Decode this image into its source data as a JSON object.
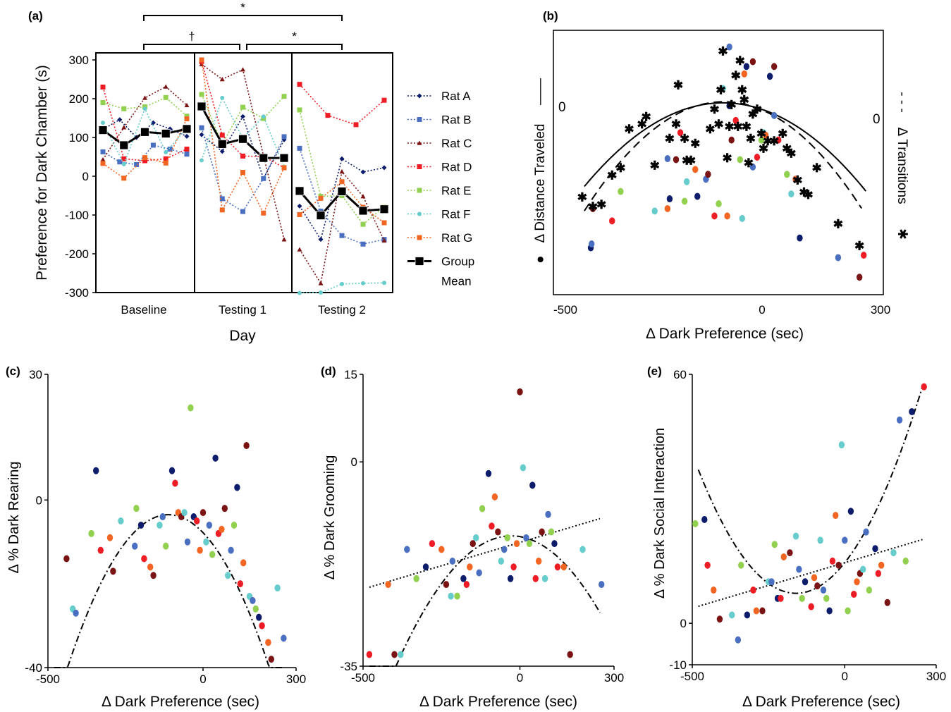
{
  "colors": {
    "rat_a": "#0d1c6b",
    "rat_b": "#4a6fc0",
    "rat_c": "#7a1414",
    "rat_d": "#ee1c24",
    "rat_e": "#92d050",
    "rat_f": "#66cccc",
    "rat_g": "#f26522",
    "group_mean": "#000000"
  },
  "chart_data": [
    {
      "panel": "(a)",
      "type": "line",
      "ylabel": "Preference for Dark Chamber (s)",
      "xlabel": "Day",
      "ylim": [
        -300,
        300
      ],
      "yticks": [
        "300",
        "200",
        "100",
        "0",
        "-100",
        "-200",
        "-300"
      ],
      "groups": [
        "Baseline",
        "Testing 1",
        "Testing 2"
      ],
      "significance": [
        {
          "from": "Baseline",
          "to": "Testing 2",
          "mark": "*"
        },
        {
          "from": "Baseline",
          "to": "Testing 1",
          "mark": "†"
        },
        {
          "from": "Testing 1",
          "to": "Testing 2",
          "mark": "*"
        }
      ],
      "series": [
        {
          "name": "Rat A",
          "color": "rat_a",
          "marker": "diamond",
          "values": [
            [
              121,
              146,
              100,
              138,
              122,
              103
            ],
            [
              107,
              64,
              154,
              -6,
              94
            ],
            [
              -77,
              -163,
              45,
              11,
              22
            ]
          ]
        },
        {
          "name": "Rat B",
          "color": "rat_b",
          "marker": "square",
          "values": [
            [
              63,
              37,
              30,
              80,
              70,
              57
            ],
            [
              125,
              -58,
              -91,
              -6,
              102
            ],
            [
              72,
              -90,
              -153,
              -175,
              -163
            ]
          ]
        },
        {
          "name": "Rat C",
          "color": "rat_c",
          "marker": "triangle",
          "values": [
            [
              43,
              126,
              202,
              231,
              183
            ],
            [
              289,
              250,
              275,
              53,
              -163
            ],
            [
              -189,
              -276,
              12,
              -52,
              -166
            ]
          ]
        },
        {
          "name": "Rat D",
          "color": "rat_d",
          "marker": "square",
          "values": [
            [
              230,
              45,
              40,
              45,
              70
            ],
            [
              296,
              106,
              52,
              51,
              22
            ],
            [
              237,
              157,
              133,
              196
            ]
          ]
        },
        {
          "name": "Rat E",
          "color": "rat_e",
          "marker": "square",
          "values": [
            [
              190,
              174,
              179,
              203,
              155
            ],
            [
              211,
              83,
              178,
              149,
              206
            ],
            [
              171,
              -52,
              -50,
              -124,
              -79
            ]
          ]
        },
        {
          "name": "Rat F",
          "color": "rat_f",
          "marker": "circle",
          "values": [
            [
              138,
              31,
              174,
              62,
              124
            ],
            [
              41,
              202,
              97,
              154,
              24
            ],
            [
              -301,
              -300,
              -278,
              -276,
              -275
            ]
          ]
        },
        {
          "name": "Rat G",
          "color": "rat_g",
          "marker": "square",
          "values": [
            [
              33,
              -5,
              48,
              34,
              148
            ],
            [
              300,
              -87,
              10,
              -95,
              22
            ],
            [
              -99,
              -57,
              -14,
              -80,
              -120
            ]
          ]
        },
        {
          "name": "Group Mean",
          "color": "group_mean",
          "marker": "square",
          "values": [
            [
              119,
              80,
              114,
              110,
              122
            ],
            [
              180,
              83,
              96,
              47,
              47
            ],
            [
              -38,
              -101,
              -39,
              -89,
              -85
            ]
          ]
        }
      ]
    },
    {
      "panel": "(b)",
      "type": "scatter",
      "xlabel": "Δ Dark Preference (sec)",
      "ylabel_left": "Δ Distance Traveled",
      "ylabel_right": "Δ Transitions",
      "left_series_marker": "●",
      "right_series_marker": "✱",
      "left_line_marker": "——",
      "right_line_marker": "- - -",
      "xlim": [
        -500,
        300
      ],
      "xticks": [
        "-500",
        "0",
        "300"
      ],
      "ylim_left": [
        -500,
        200
      ],
      "ylim_right": [
        -500,
        200
      ],
      "yzero_label_left": "0",
      "yzero_label_right": "0",
      "fit_left": {
        "style": "solid",
        "a": -0.00161,
        "b": -0.288,
        "c": -7
      },
      "fit_right": {
        "style": "dashed",
        "a": -0.0021,
        "b": -0.37,
        "c": 18
      },
      "points_distance": [
        [
          -400,
          -290
        ],
        [
          -398,
          -282
        ],
        [
          -395,
          -210
        ],
        [
          -350,
          -235
        ],
        [
          -330,
          -175
        ],
        [
          -250,
          -215
        ],
        [
          -220,
          -210
        ],
        [
          -215,
          -190
        ],
        [
          -220,
          -108
        ],
        [
          -200,
          -110
        ],
        [
          -190,
          -55
        ],
        [
          -180,
          -195
        ],
        [
          -175,
          -155
        ],
        [
          -155,
          -130
        ],
        [
          -150,
          -185
        ],
        [
          -130,
          -150
        ],
        [
          -125,
          -140
        ],
        [
          -110,
          -225
        ],
        [
          -100,
          -200
        ],
        [
          -90,
          35
        ],
        [
          -80,
          -225
        ],
        [
          -75,
          0
        ],
        [
          -75,
          120
        ],
        [
          -70,
          -70
        ],
        [
          -60,
          -30
        ],
        [
          -50,
          -110
        ],
        [
          -45,
          -230
        ],
        [
          -40,
          65
        ],
        [
          -35,
          80
        ],
        [
          -20,
          -125
        ],
        [
          -20,
          90
        ],
        [
          -10,
          -105
        ],
        [
          0,
          -70
        ],
        [
          5,
          -55
        ],
        [
          10,
          -60
        ],
        [
          20,
          60
        ],
        [
          30,
          -20
        ],
        [
          30,
          80
        ],
        [
          40,
          -70
        ],
        [
          60,
          -140
        ],
        [
          70,
          -180
        ],
        [
          80,
          -150
        ],
        [
          90,
          -270
        ],
        [
          180,
          -310
        ],
        [
          230,
          -350
        ],
        [
          240,
          -305
        ]
      ],
      "points_transitions": [
        [
          -420,
          -160
        ],
        [
          -395,
          -180
        ],
        [
          -375,
          -175
        ],
        [
          -350,
          -115
        ],
        [
          -330,
          -100
        ],
        [
          -310,
          -20
        ],
        [
          -280,
          -10
        ],
        [
          -270,
          5
        ],
        [
          -250,
          -95
        ],
        [
          -215,
          -40
        ],
        [
          -200,
          -10
        ],
        [
          -195,
          70
        ],
        [
          -180,
          -40
        ],
        [
          -175,
          -85
        ],
        [
          -165,
          -85
        ],
        [
          -155,
          -50
        ],
        [
          -120,
          -20
        ],
        [
          -110,
          20
        ],
        [
          -100,
          -10
        ],
        [
          -95,
          60
        ],
        [
          -90,
          140
        ],
        [
          -80,
          -80
        ],
        [
          -75,
          -15
        ],
        [
          -70,
          30
        ],
        [
          -60,
          90
        ],
        [
          -55,
          -15
        ],
        [
          -50,
          120
        ],
        [
          -45,
          60
        ],
        [
          -40,
          40
        ],
        [
          -35,
          -15
        ],
        [
          -30,
          -90
        ],
        [
          -25,
          -40
        ],
        [
          -20,
          10
        ],
        [
          -10,
          20
        ],
        [
          0,
          -30
        ],
        [
          5,
          -60
        ],
        [
          15,
          -45
        ],
        [
          30,
          -45
        ],
        [
          50,
          -30
        ],
        [
          60,
          -60
        ],
        [
          70,
          -70
        ],
        [
          85,
          -125
        ],
        [
          100,
          -150
        ],
        [
          110,
          -155
        ],
        [
          130,
          -100
        ],
        [
          180,
          -215
        ],
        [
          230,
          -260
        ]
      ]
    },
    {
      "panel": "(c)",
      "type": "scatter",
      "xlabel": "Δ Dark Preference (sec)",
      "ylabel": "Δ % Dark Rearing",
      "xlim": [
        -500,
        300
      ],
      "ylim": [
        -40,
        30
      ],
      "xticks": [
        "-500",
        "0",
        "300"
      ],
      "yticks": [
        "30",
        "0",
        "-40"
      ],
      "fit": {
        "style": "dashdot",
        "a": -0.000345,
        "b": -0.077,
        "c": -7.8
      },
      "points": [
        [
          -440,
          -14
        ],
        [
          -420,
          -26
        ],
        [
          -410,
          -27
        ],
        [
          -360,
          -8
        ],
        [
          -345,
          7
        ],
        [
          -330,
          -12
        ],
        [
          -300,
          -9
        ],
        [
          -290,
          -17
        ],
        [
          -265,
          -5
        ],
        [
          -220,
          -11
        ],
        [
          -215,
          -2
        ],
        [
          -200,
          -6
        ],
        [
          -190,
          -14
        ],
        [
          -170,
          -16
        ],
        [
          -160,
          -18
        ],
        [
          -140,
          -6
        ],
        [
          -130,
          -4
        ],
        [
          -120,
          -11
        ],
        [
          -100,
          7
        ],
        [
          -90,
          4
        ],
        [
          -80,
          -3
        ],
        [
          -70,
          -4
        ],
        [
          -60,
          -3
        ],
        [
          -50,
          -10
        ],
        [
          -40,
          22
        ],
        [
          -30,
          -4
        ],
        [
          -20,
          -5
        ],
        [
          -10,
          -12
        ],
        [
          0,
          -3
        ],
        [
          10,
          -10
        ],
        [
          20,
          -6
        ],
        [
          30,
          -13
        ],
        [
          40,
          10
        ],
        [
          50,
          -8
        ],
        [
          60,
          -7
        ],
        [
          70,
          -2
        ],
        [
          80,
          -18
        ],
        [
          90,
          -12
        ],
        [
          100,
          -6
        ],
        [
          110,
          3
        ],
        [
          120,
          -20
        ],
        [
          130,
          -15
        ],
        [
          140,
          13
        ],
        [
          150,
          -23
        ],
        [
          160,
          -24
        ],
        [
          170,
          -26
        ],
        [
          180,
          -28
        ],
        [
          190,
          -30
        ],
        [
          210,
          -34
        ],
        [
          220,
          -38
        ],
        [
          240,
          -21
        ],
        [
          260,
          -33
        ]
      ]
    },
    {
      "panel": "(d)",
      "type": "scatter",
      "xlabel": "Δ Dark Preference (sec)",
      "ylabel": "Δ % Dark Grooming",
      "xlim": [
        -500,
        300
      ],
      "ylim": [
        -35,
        15
      ],
      "xticks": [
        "-500",
        "0",
        "300"
      ],
      "yticks": [
        "15",
        "0",
        "-35"
      ],
      "fit_quadratic": {
        "style": "dashdot",
        "a": -0.000165,
        "b": -0.009,
        "c": -12.8
      },
      "fit_linear": {
        "style": "dotted",
        "m": 0.016,
        "c": -13.8
      },
      "points": [
        [
          -480,
          -33
        ],
        [
          -420,
          -21
        ],
        [
          -400,
          -33
        ],
        [
          -380,
          -33
        ],
        [
          -360,
          -15
        ],
        [
          -330,
          -20
        ],
        [
          -300,
          -18
        ],
        [
          -280,
          -14
        ],
        [
          -250,
          -15
        ],
        [
          -235,
          -21
        ],
        [
          -220,
          -23
        ],
        [
          -215,
          -17
        ],
        [
          -200,
          -23
        ],
        [
          -180,
          -20
        ],
        [
          -170,
          -21
        ],
        [
          -160,
          -18
        ],
        [
          -150,
          -14
        ],
        [
          -140,
          -13
        ],
        [
          -130,
          -19
        ],
        [
          -120,
          -8
        ],
        [
          -100,
          -2
        ],
        [
          -90,
          -11
        ],
        [
          -80,
          -6
        ],
        [
          -70,
          -12
        ],
        [
          -60,
          -17
        ],
        [
          -50,
          -15
        ],
        [
          -40,
          -13
        ],
        [
          -30,
          -20
        ],
        [
          -20,
          -18
        ],
        [
          -10,
          -14
        ],
        [
          0,
          12
        ],
        [
          10,
          -1
        ],
        [
          20,
          -13
        ],
        [
          30,
          -14
        ],
        [
          40,
          -4
        ],
        [
          50,
          -20
        ],
        [
          60,
          -17
        ],
        [
          70,
          -12
        ],
        [
          80,
          -20
        ],
        [
          90,
          -9
        ],
        [
          100,
          -12
        ],
        [
          110,
          -14
        ],
        [
          120,
          -18
        ],
        [
          140,
          -18
        ],
        [
          160,
          -33
        ],
        [
          200,
          -15
        ],
        [
          260,
          -21
        ]
      ]
    },
    {
      "panel": "(e)",
      "type": "scatter",
      "xlabel": "Δ Dark Preference (sec)",
      "ylabel": "Δ % Dark Social Interaction",
      "xlim": [
        -500,
        300
      ],
      "ylim": [
        -10,
        60
      ],
      "xticks": [
        "-500",
        "0",
        "300"
      ],
      "yticks": [
        "60",
        "0",
        "-10"
      ],
      "fit_quadratic": {
        "style": "dashdot",
        "a": 0.00029,
        "b": 0.0925,
        "c": 14.6
      },
      "fit_linear": {
        "style": "dotted",
        "m": 0.0219,
        "c": 14.6
      },
      "points": [
        [
          -490,
          24
        ],
        [
          -460,
          25
        ],
        [
          -450,
          14
        ],
        [
          -430,
          8
        ],
        [
          -410,
          1
        ],
        [
          -370,
          2
        ],
        [
          -350,
          -4
        ],
        [
          -340,
          14
        ],
        [
          -320,
          2
        ],
        [
          -300,
          8
        ],
        [
          -290,
          3
        ],
        [
          -270,
          3
        ],
        [
          -250,
          10
        ],
        [
          -240,
          10
        ],
        [
          -230,
          19
        ],
        [
          -220,
          6
        ],
        [
          -210,
          6
        ],
        [
          -200,
          16
        ],
        [
          -180,
          17
        ],
        [
          -160,
          21
        ],
        [
          -150,
          13
        ],
        [
          -140,
          6
        ],
        [
          -130,
          10
        ],
        [
          -110,
          4
        ],
        [
          -100,
          11
        ],
        [
          -90,
          9
        ],
        [
          -80,
          20
        ],
        [
          -70,
          8
        ],
        [
          -60,
          6
        ],
        [
          -50,
          3
        ],
        [
          -40,
          15
        ],
        [
          -30,
          26
        ],
        [
          -20,
          14
        ],
        [
          -10,
          43
        ],
        [
          0,
          20
        ],
        [
          10,
          3
        ],
        [
          20,
          27
        ],
        [
          30,
          7
        ],
        [
          40,
          10
        ],
        [
          50,
          12
        ],
        [
          60,
          13
        ],
        [
          70,
          22
        ],
        [
          80,
          8
        ],
        [
          100,
          18
        ],
        [
          110,
          12
        ],
        [
          120,
          14
        ],
        [
          140,
          5
        ],
        [
          160,
          17
        ],
        [
          180,
          49
        ],
        [
          200,
          15
        ],
        [
          220,
          51
        ],
        [
          260,
          57
        ]
      ]
    }
  ]
}
